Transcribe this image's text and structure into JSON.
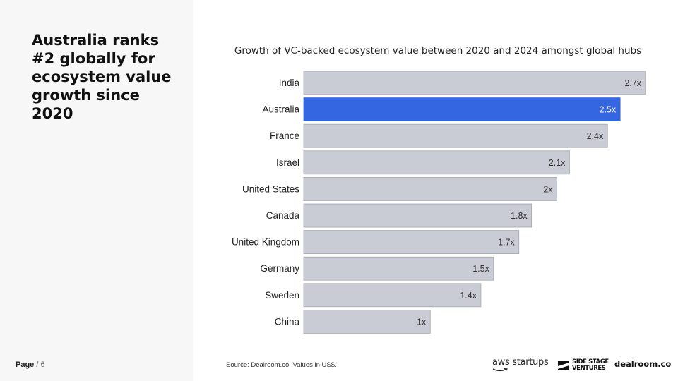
{
  "headline": "Australia ranks #2 globally for ecosystem value growth since 2020",
  "page": {
    "label": "Page",
    "rest": "/ 6"
  },
  "source": "Source:  Dealroom.co. Values in US$.",
  "logos": {
    "aws": "aws startups",
    "side_stage_line1": "SIDE STAGE",
    "side_stage_line2": "VENTURES",
    "dealroom": "dealroom.co"
  },
  "colors": {
    "bar": "#c9ccd4",
    "highlight": "#3566e1",
    "bar_border": "#a3a6ad"
  },
  "chart_data": {
    "type": "bar",
    "orientation": "horizontal",
    "title": "Growth of VC-backed ecosystem value between 2020 and 2024 amongst global hubs",
    "categories": [
      "India",
      "Australia",
      "France",
      "Israel",
      "United States",
      "Canada",
      "United Kingdom",
      "Germany",
      "Sweden",
      "China"
    ],
    "values": [
      2.7,
      2.5,
      2.4,
      2.1,
      2.0,
      1.8,
      1.7,
      1.5,
      1.4,
      1.0
    ],
    "data_labels": [
      "2.7x",
      "2.5x",
      "2.4x",
      "2.1x",
      "2x",
      "1.8x",
      "1.7x",
      "1.5x",
      "1.4x",
      "1x"
    ],
    "highlight": "Australia",
    "xlim": [
      0,
      2.7
    ],
    "grid": false,
    "legend": "none"
  }
}
